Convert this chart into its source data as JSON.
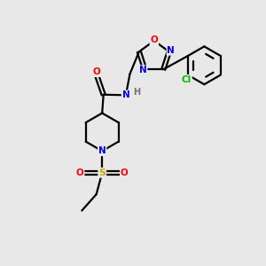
{
  "bg_color": "#e8e8e8",
  "bond_color": "#000000",
  "atom_colors": {
    "O": "#ff0000",
    "N": "#0000ff",
    "S": "#ccaa00",
    "Cl": "#00bb00",
    "C": "#000000",
    "H": "#707070"
  },
  "figsize": [
    3.0,
    3.0
  ],
  "dpi": 100
}
